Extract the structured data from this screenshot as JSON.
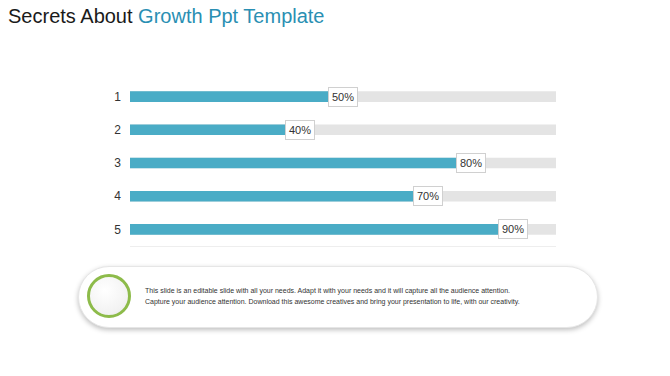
{
  "chart_data": {
    "type": "bar",
    "title": "Secrets About Growth Ppt Template",
    "orientation": "horizontal",
    "categories": [
      "1",
      "2",
      "3",
      "4",
      "5"
    ],
    "values": [
      50,
      40,
      80,
      70,
      90
    ],
    "value_labels": [
      "50%",
      "40%",
      "80%",
      "70%",
      "90%"
    ],
    "data_labels": true,
    "color": "#4aacc6",
    "xlim": [
      0,
      100
    ],
    "tick_labels": "y",
    "grid": false,
    "annotations": [
      "This slide is an editable slide with all your needs. Adapt it with your needs and it will capture all the audience attention.",
      "Capture your audience attention. Download this awesome creatives and bring your presentation to life, with our creativity."
    ]
  }
}
